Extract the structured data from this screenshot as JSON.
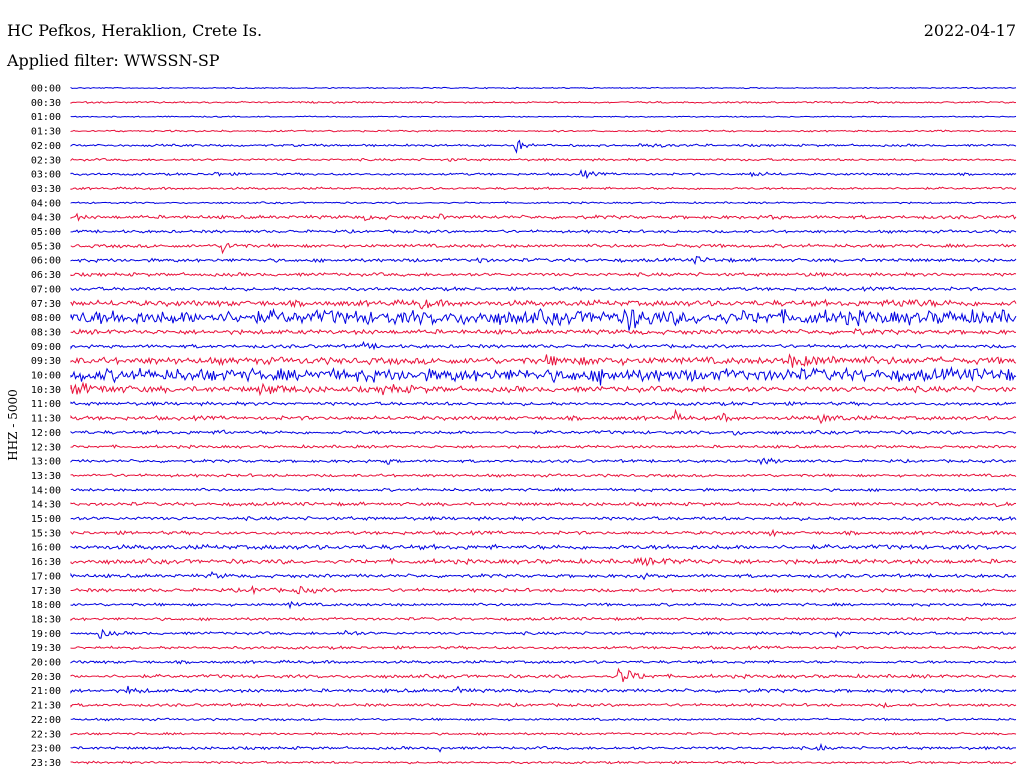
{
  "header": {
    "station": "HC Pefkos, Heraklion, Crete Is.",
    "date": "2022-04-17",
    "filter": "Applied filter: WWSSN-SP",
    "channel": "HHZ - 5000"
  },
  "colors": {
    "even_trace": "#0000e0",
    "odd_trace": "#e8103a",
    "text": "#000000"
  },
  "chart_data": {
    "type": "helicorder",
    "title": "HC Pefkos, Heraklion, Crete Is.",
    "ylabel": "HHZ - 5000",
    "rows": [
      {
        "time": "00:00",
        "noise": 0.2,
        "events": []
      },
      {
        "time": "00:30",
        "noise": 0.3,
        "events": [
          [
            0.95,
            0.2,
            1
          ]
        ]
      },
      {
        "time": "01:00",
        "noise": 0.2,
        "events": []
      },
      {
        "time": "01:30",
        "noise": 0.3,
        "events": [
          [
            0.92,
            0.2,
            1
          ]
        ]
      },
      {
        "time": "02:00",
        "noise": 0.4,
        "events": [
          [
            0.47,
            2.3,
            2
          ],
          [
            0.6,
            0.5,
            6
          ]
        ]
      },
      {
        "time": "02:30",
        "noise": 0.4,
        "events": [
          [
            0.4,
            0.4,
            2
          ]
        ]
      },
      {
        "time": "03:00",
        "noise": 0.4,
        "events": [
          [
            0.15,
            0.8,
            2
          ],
          [
            0.54,
            1.5,
            2
          ],
          [
            0.72,
            0.8,
            3
          ]
        ]
      },
      {
        "time": "03:30",
        "noise": 0.4,
        "events": []
      },
      {
        "time": "04:00",
        "noise": 0.3,
        "events": []
      },
      {
        "time": "04:30",
        "noise": 0.6,
        "events": [
          [
            0.005,
            1.0,
            1
          ],
          [
            0.31,
            0.6,
            4
          ],
          [
            0.39,
            0.8,
            1
          ],
          [
            0.74,
            0.6,
            1
          ]
        ]
      },
      {
        "time": "05:00",
        "noise": 0.5,
        "events": []
      },
      {
        "time": "05:30",
        "noise": 0.6,
        "events": [
          [
            0.16,
            2.0,
            2
          ],
          [
            0.63,
            0.5,
            3
          ]
        ]
      },
      {
        "time": "06:00",
        "noise": 0.6,
        "events": [
          [
            0.43,
            1.5,
            1
          ],
          [
            0.66,
            0.9,
            3
          ]
        ]
      },
      {
        "time": "06:30",
        "noise": 0.6,
        "events": [
          [
            0.78,
            1.1,
            1
          ]
        ]
      },
      {
        "time": "07:00",
        "noise": 0.6,
        "events": []
      },
      {
        "time": "07:30",
        "noise": 1.0,
        "events": [
          [
            0.37,
            1.5,
            2
          ],
          [
            0.87,
            1.0,
            8
          ]
        ]
      },
      {
        "time": "08:00",
        "noise": 2.5,
        "events": [
          [
            0.59,
            3.5,
            2
          ]
        ]
      },
      {
        "time": "08:30",
        "noise": 0.8,
        "events": [
          [
            0.83,
            1.2,
            1
          ]
        ]
      },
      {
        "time": "09:00",
        "noise": 0.6,
        "events": [
          [
            0.31,
            1.0,
            2
          ]
        ]
      },
      {
        "time": "09:30",
        "noise": 1.2,
        "events": [
          [
            0.5,
            1.0,
            10
          ],
          [
            0.76,
            1.5,
            10
          ]
        ]
      },
      {
        "time": "10:00",
        "noise": 2.2,
        "events": [
          [
            0.56,
            1.5,
            2
          ]
        ]
      },
      {
        "time": "10:30",
        "noise": 1.0,
        "events": [
          [
            0.0,
            1.5,
            8
          ],
          [
            0.2,
            1.5,
            5
          ],
          [
            0.33,
            1.2,
            5
          ]
        ]
      },
      {
        "time": "11:00",
        "noise": 0.6,
        "events": []
      },
      {
        "time": "11:30",
        "noise": 0.7,
        "events": [
          [
            0.64,
            1.8,
            1
          ],
          [
            0.69,
            1.5,
            1
          ],
          [
            0.79,
            1.3,
            4
          ]
        ]
      },
      {
        "time": "12:00",
        "noise": 0.6,
        "events": [
          [
            0.16,
            1.3,
            1
          ],
          [
            0.7,
            1.3,
            1
          ]
        ]
      },
      {
        "time": "12:30",
        "noise": 0.5,
        "events": []
      },
      {
        "time": "13:00",
        "noise": 0.5,
        "events": [
          [
            0.33,
            1.2,
            2
          ],
          [
            0.73,
            1.0,
            3
          ]
        ]
      },
      {
        "time": "13:30",
        "noise": 0.5,
        "events": []
      },
      {
        "time": "14:00",
        "noise": 0.5,
        "events": []
      },
      {
        "time": "14:30",
        "noise": 0.6,
        "events": [
          [
            0.98,
            0.9,
            2
          ]
        ]
      },
      {
        "time": "15:00",
        "noise": 0.6,
        "events": []
      },
      {
        "time": "15:30",
        "noise": 0.6,
        "events": [
          [
            0.74,
            1.2,
            1
          ]
        ]
      },
      {
        "time": "16:00",
        "noise": 0.8,
        "events": []
      },
      {
        "time": "16:30",
        "noise": 0.8,
        "events": [
          [
            0.6,
            0.8,
            8
          ]
        ]
      },
      {
        "time": "17:00",
        "noise": 0.6,
        "events": [
          [
            0.15,
            0.8,
            2
          ],
          [
            0.6,
            1.0,
            2
          ]
        ]
      },
      {
        "time": "17:30",
        "noise": 0.6,
        "events": [
          [
            0.19,
            1.0,
            3
          ],
          [
            0.24,
            1.0,
            3
          ]
        ]
      },
      {
        "time": "18:00",
        "noise": 0.5,
        "events": [
          [
            0.23,
            0.8,
            2
          ]
        ]
      },
      {
        "time": "18:30",
        "noise": 0.5,
        "events": []
      },
      {
        "time": "19:00",
        "noise": 0.5,
        "events": [
          [
            0.03,
            1.5,
            2
          ],
          [
            0.29,
            1.0,
            2
          ],
          [
            0.81,
            1.1,
            2
          ],
          [
            0.87,
            1.0,
            1
          ]
        ]
      },
      {
        "time": "19:30",
        "noise": 0.5,
        "events": []
      },
      {
        "time": "20:00",
        "noise": 0.5,
        "events": []
      },
      {
        "time": "20:30",
        "noise": 0.6,
        "events": [
          [
            0.58,
            3.0,
            3
          ]
        ]
      },
      {
        "time": "21:00",
        "noise": 0.6,
        "events": [
          [
            0.06,
            1.3,
            2
          ],
          [
            0.41,
            1.5,
            1
          ]
        ]
      },
      {
        "time": "21:30",
        "noise": 0.5,
        "events": [
          [
            0.86,
            0.7,
            1
          ]
        ]
      },
      {
        "time": "22:00",
        "noise": 0.4,
        "events": []
      },
      {
        "time": "22:30",
        "noise": 0.4,
        "events": []
      },
      {
        "time": "23:00",
        "noise": 0.5,
        "events": [
          [
            0.39,
            1.0,
            1
          ],
          [
            0.79,
            1.8,
            1
          ]
        ]
      },
      {
        "time": "23:30",
        "noise": 0.4,
        "events": []
      }
    ]
  }
}
